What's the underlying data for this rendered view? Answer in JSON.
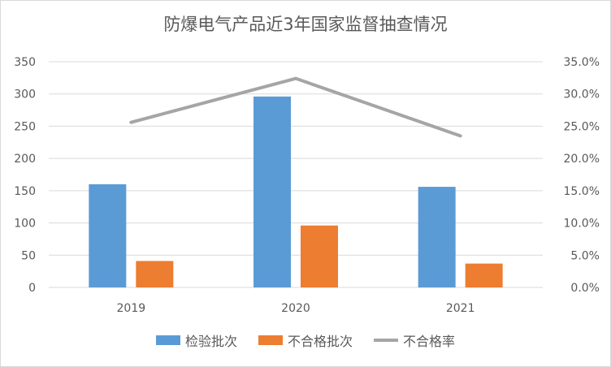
{
  "chart_data": {
    "type": "bar",
    "title": "防爆电气产品近3年国家监督抽查情况",
    "categories": [
      "2019",
      "2020",
      "2021"
    ],
    "series": [
      {
        "name": "检验批次",
        "type": "bar",
        "axis": "left",
        "color": "#5B9BD5",
        "values": [
          160,
          296,
          156
        ]
      },
      {
        "name": "不合格批次",
        "type": "bar",
        "axis": "left",
        "color": "#ED7D31",
        "values": [
          41,
          96,
          37
        ]
      },
      {
        "name": "不合格率",
        "type": "line",
        "axis": "right",
        "color": "#A5A5A5",
        "values": [
          0.256,
          0.324,
          0.235
        ]
      }
    ],
    "y_left": {
      "min": 0,
      "max": 350,
      "step": 50,
      "ticks": [
        "0",
        "50",
        "100",
        "150",
        "200",
        "250",
        "300",
        "350"
      ]
    },
    "y_right": {
      "min": 0,
      "max": 0.35,
      "step": 0.05,
      "ticks": [
        "0.0%",
        "5.0%",
        "10.0%",
        "15.0%",
        "20.0%",
        "25.0%",
        "30.0%",
        "35.0%"
      ]
    },
    "grid": true,
    "legend_position": "bottom"
  }
}
